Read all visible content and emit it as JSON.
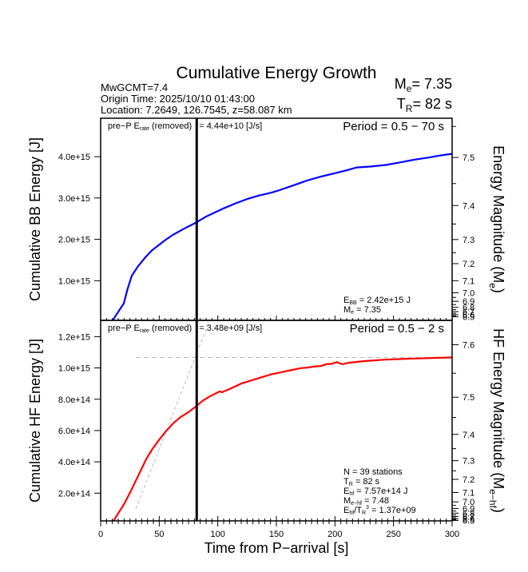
{
  "chart_data": {
    "type": "line",
    "title": "Cumulative Energy Growth",
    "header": {
      "left_lines": [
        "MwGCMT=7.4",
        "Origin Time: 2025/10/10 01:43:00",
        "Location: 7.2649, 126.7545, z=58.087 km"
      ],
      "me_label": "M",
      "me_sub": "e",
      "me_value": "= 7.35",
      "tr_label": "T",
      "tr_sub": "R",
      "tr_value": "= 82 s"
    },
    "xlabel": "Time from P−arrival [s]",
    "xlim": [
      0,
      300
    ],
    "xticks": [
      0,
      50,
      100,
      150,
      200,
      250,
      300
    ],
    "x_minor_step": 5,
    "vertical_marker": {
      "x": 82,
      "color": "#000000",
      "label": "T_R"
    },
    "panels": [
      {
        "id": "bb",
        "ylabel": "Cumulative BB Energy [J]",
        "ylabel_right": "Energy Magnitude (M",
        "ylabel_right_sub": "e",
        "ylabel_right_end": ")",
        "ylim": [
          40000000000000.0,
          4930000000000000.0
        ],
        "yticks": [
          1000000000000000.0,
          2000000000000000.0,
          3000000000000000.0,
          4000000000000000.0
        ],
        "ytick_labels": [
          "1.0e+15",
          "2.0e+15",
          "3.0e+15",
          "4.0e+15"
        ],
        "magnitude_offset": 2.9,
        "right_ticks": [
          6.5,
          6.6,
          6.7,
          6.8,
          6.9,
          7.0,
          7.1,
          7.2,
          7.3,
          7.4,
          7.5
        ],
        "right_tick_labels": [
          "6.5",
          "6.6",
          "6.7",
          "6.8",
          "6.9",
          "7.0",
          "7.1",
          "7.2",
          "7.3",
          "7.4",
          "7.5"
        ],
        "right_minor_ticks": [
          7.25,
          7.35,
          7.45,
          7.55
        ],
        "prep_label": "pre−P E",
        "prep_sub": "rate",
        "prep_mid": " (removed) ",
        "prep_value": "= 4.44e+10 [J/s]",
        "period": "Period = 0.5 − 70 s",
        "series": [
          {
            "name": "Cumulative BB Energy",
            "color": "#0000ff",
            "x": [
              9.5,
              14,
              19.8,
              23,
              26.6,
              32,
              38,
              43.6,
              50.5,
              55,
              61.8,
              70,
              81.1,
              90,
              105,
              115,
              125.5,
              135,
              145.9,
              152.7,
              165,
              176,
              186.8,
              200,
              210,
              218.6,
              230,
              243.4,
              255,
              268.6,
              280,
              290,
              300
            ],
            "y": [
              0.0,
              200000000000000.0,
              450000000000000.0,
              800000000000000.0,
              1120000000000000.0,
              1350000000000000.0,
              1560000000000000.0,
              1730000000000000.0,
              1880000000000000.0,
              1980000000000000.0,
              2110000000000000.0,
              2240000000000000.0,
              2400000000000000.0,
              2550000000000000.0,
              2750000000000000.0,
              2870000000000000.0,
              2980000000000000.0,
              3060000000000000.0,
              3130000000000000.0,
              3190000000000000.0,
              3310000000000000.0,
              3420000000000000.0,
              3510000000000000.0,
              3600000000000000.0,
              3670000000000000.0,
              3740000000000000.0,
              3760000000000000.0,
              3800000000000000.0,
              3860000000000000.0,
              3930000000000000.0,
              3980000000000000.0,
              4030000000000000.0,
              4070000000000000.0
            ]
          }
        ],
        "annotation": [
          {
            "main": "E",
            "sub": "BB",
            "rest": " = 2.42e+15 J"
          },
          {
            "main": "M",
            "sub": "e",
            "rest": " = 7.35"
          }
        ]
      },
      {
        "id": "hf",
        "ylabel": "Cumulative HF Energy [J]",
        "ylabel_right": "HF Energy Magnitude (M",
        "ylabel_right_sub": "e−hf",
        "ylabel_right_end": ")",
        "ylim": [
          23000000000000.0,
          1304000000000000.0
        ],
        "yticks": [
          200000000000000.0,
          400000000000000.0,
          600000000000000.0,
          800000000000000.0,
          1000000000000000.0,
          1200000000000000.0
        ],
        "ytick_labels": [
          "2.0e+14",
          "4.0e+14",
          "6.0e+14",
          "8.0e+14",
          "1.0e+15",
          "1.2e+15"
        ],
        "magnitude_offset": 2.44,
        "right_ticks": [
          6.5,
          6.6,
          6.7,
          6.8,
          6.9,
          7.0,
          7.1,
          7.2,
          7.3,
          7.4,
          7.5,
          7.6
        ],
        "right_tick_labels": [
          "6.5",
          "6.6",
          "6.7",
          "6.8",
          "6.9",
          "7.0",
          "7.1",
          "7.2",
          "7.3",
          "7.4",
          "7.5",
          "7.6"
        ],
        "right_minor_ticks": [
          7.25,
          7.35,
          7.45,
          7.55,
          7.65
        ],
        "prep_label": "pre−P E",
        "prep_sub": "rate",
        "prep_mid": " (removed) ",
        "prep_value": "= 3.48e+09 [J/s]",
        "period": "Period = 0.5 − 2 s",
        "series": [
          {
            "name": "Cumulative HF Energy",
            "color": "#ff0000",
            "x": [
              9.5,
              14,
              19.8,
              25.5,
              32,
              39.1,
              44,
              49.3,
              55,
              61.8,
              68,
              75.4,
              81.8,
              87,
              93.6,
              101.6,
              103.9,
              110,
              119.8,
              135,
              145.9,
              152.7,
              162,
              170.9,
              176,
              183.4,
              188,
              192.5,
              197,
              201.6,
              206.1,
              211.8,
              224.3,
              242.5,
              267.5,
              300
            ],
            "y": [
              2000000000000.0,
              60000000000000.0,
              127000000000000.0,
              210000000000000.0,
              310000000000000.0,
              420000000000000.0,
              480000000000000.0,
              535000000000000.0,
              590000000000000.0,
              645000000000000.0,
              685000000000000.0,
              720000000000000.0,
              757000000000000.0,
              790000000000000.0,
              820000000000000.0,
              850000000000000.0,
              845000000000000.0,
              865000000000000.0,
              900000000000000.0,
              935000000000000.0,
              960000000000000.0,
              970000000000000.0,
              985000000000000.0,
              999000000000000.0,
              1002000000000000.0,
              1010000000000000.0,
              1012000000000000.0,
              1024000000000000.0,
              1026000000000000.0,
              1037000000000000.0,
              1024000000000000.0,
              1033000000000000.0,
              1043000000000000.0,
              1053000000000000.0,
              1060000000000000.0,
              1067000000000000.0
            ]
          }
        ],
        "reference_lines": [
          {
            "name": "plateau",
            "style": "dashed",
            "color": "#bbbbbb",
            "x": [
              30,
              300
            ],
            "y": [
              1067000000000000.0,
              1067000000000000.0
            ]
          },
          {
            "name": "initial-slope",
            "style": "dashed",
            "color": "#bbbbbb",
            "x": [
              30,
              93
            ],
            "y": [
              100000000000000.0,
              1304000000000000.0
            ]
          }
        ],
        "annotation": [
          {
            "main": "N = 39 stations",
            "sub": "",
            "rest": ""
          },
          {
            "main": "T",
            "sub": "R",
            "rest": " = 82  s"
          },
          {
            "main": "E",
            "sub": "hf",
            "rest": " = 7.57e+14 J"
          },
          {
            "main": "M",
            "sub": "e−hf",
            "rest": " = 7.48"
          },
          {
            "main": "E",
            "sub": "hf",
            "rest": "/T",
            "sub2": "R",
            "sup2": "3",
            "rest2": " =  1.37e+09"
          }
        ]
      }
    ]
  }
}
